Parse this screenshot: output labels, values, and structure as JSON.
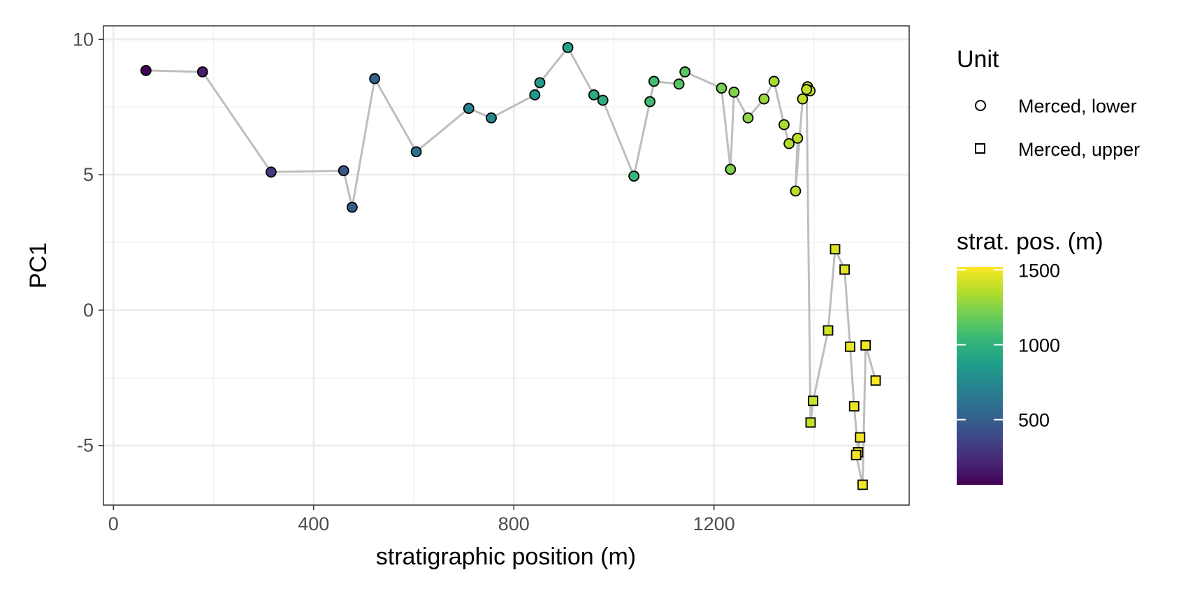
{
  "chart_data": {
    "type": "scatter",
    "xlabel": "stratigraphic position (m)",
    "ylabel": "PC1",
    "xlim": [
      -20,
      1590
    ],
    "ylim": [
      -7.2,
      10.5
    ],
    "x_ticks": [
      0,
      400,
      800,
      1200
    ],
    "y_ticks": [
      -5,
      0,
      5,
      10
    ],
    "x_tick_labels": [
      "0",
      "400",
      "800",
      "1200"
    ],
    "y_tick_labels": [
      "-5",
      "0",
      "5",
      "10"
    ],
    "grid": true,
    "connecting_line_color": "#bebebe",
    "legend": {
      "placement": "right",
      "shape_title": "Unit",
      "shape_items": [
        {
          "label": "Merced, lower",
          "shape": "circle"
        },
        {
          "label": "Merced, upper",
          "shape": "square"
        }
      ],
      "color_title": "strat. pos. (m)",
      "color_ticks": [
        500,
        1000,
        1500
      ],
      "color_tick_labels": [
        "500",
        "1000",
        "1500"
      ],
      "color_range": [
        65,
        1520
      ],
      "colormap": "viridis"
    },
    "series": [
      {
        "name": "Merced, lower",
        "shape": "circle",
        "points": [
          {
            "x": 65,
            "y": 8.85
          },
          {
            "x": 178,
            "y": 8.8
          },
          {
            "x": 315,
            "y": 5.1
          },
          {
            "x": 460,
            "y": 5.15
          },
          {
            "x": 477,
            "y": 3.8
          },
          {
            "x": 522,
            "y": 8.55
          },
          {
            "x": 605,
            "y": 5.85
          },
          {
            "x": 710,
            "y": 7.45
          },
          {
            "x": 755,
            "y": 7.1
          },
          {
            "x": 842,
            "y": 7.95
          },
          {
            "x": 852,
            "y": 8.4
          },
          {
            "x": 908,
            "y": 9.7
          },
          {
            "x": 960,
            "y": 7.95
          },
          {
            "x": 978,
            "y": 7.75
          },
          {
            "x": 1040,
            "y": 4.95
          },
          {
            "x": 1072,
            "y": 7.7
          },
          {
            "x": 1080,
            "y": 8.45
          },
          {
            "x": 1130,
            "y": 8.35
          },
          {
            "x": 1142,
            "y": 8.8
          },
          {
            "x": 1215,
            "y": 8.2
          },
          {
            "x": 1233,
            "y": 5.2
          },
          {
            "x": 1240,
            "y": 8.05
          },
          {
            "x": 1268,
            "y": 7.1
          },
          {
            "x": 1300,
            "y": 7.8
          },
          {
            "x": 1320,
            "y": 8.45
          },
          {
            "x": 1340,
            "y": 6.85
          },
          {
            "x": 1350,
            "y": 6.15
          },
          {
            "x": 1367,
            "y": 6.35
          },
          {
            "x": 1363,
            "y": 4.4
          },
          {
            "x": 1377,
            "y": 7.8
          },
          {
            "x": 1387,
            "y": 8.25
          },
          {
            "x": 1392,
            "y": 8.1
          },
          {
            "x": 1385,
            "y": 8.15
          }
        ]
      },
      {
        "name": "Merced, upper",
        "shape": "square",
        "points": [
          {
            "x": 1393,
            "y": -4.15
          },
          {
            "x": 1398,
            "y": -3.35
          },
          {
            "x": 1428,
            "y": -0.75
          },
          {
            "x": 1442,
            "y": 2.25
          },
          {
            "x": 1461,
            "y": 1.5
          },
          {
            "x": 1472,
            "y": -1.35
          },
          {
            "x": 1480,
            "y": -3.55
          },
          {
            "x": 1488,
            "y": -5.25
          },
          {
            "x": 1492,
            "y": -4.7
          },
          {
            "x": 1484,
            "y": -5.35
          },
          {
            "x": 1497,
            "y": -6.45
          },
          {
            "x": 1503,
            "y": -1.3
          },
          {
            "x": 1523,
            "y": -2.6
          }
        ]
      }
    ]
  }
}
